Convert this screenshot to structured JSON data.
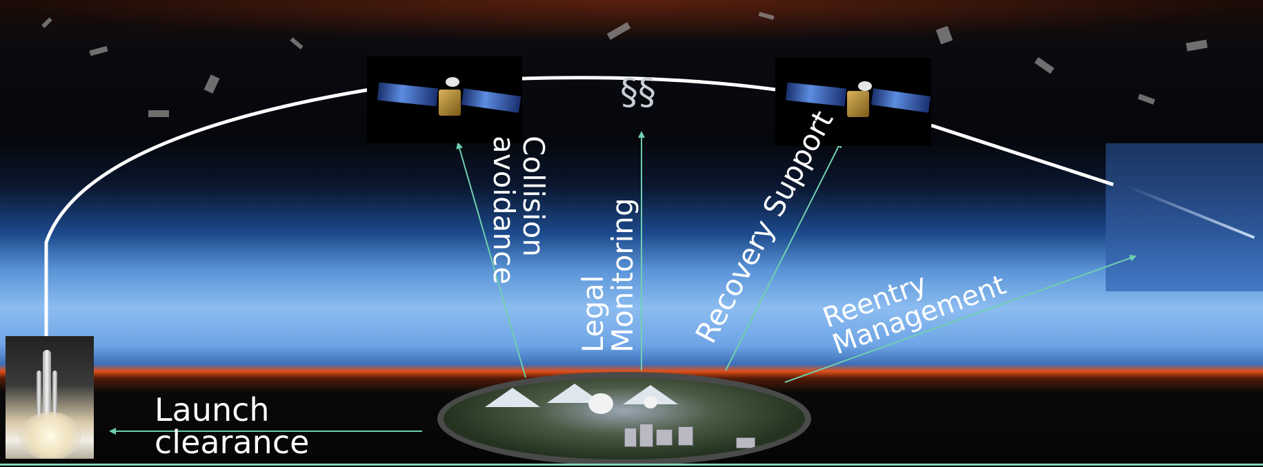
{
  "labels": {
    "launch_clearance": "Launch\nclearance",
    "collision_avoidance": "Collision\navoidance",
    "legal_monitoring": "Legal\nMonitoring",
    "legal_symbol": "§§",
    "recovery_support": "Recovery Support",
    "reentry_management": "Reentry\nManagement"
  },
  "colors": {
    "arrow": "#6fd0ae",
    "orbit": "#ffffff",
    "label_text": "#ffffff"
  },
  "icons": {
    "satellite_left": "satellite-icon",
    "satellite_right": "satellite-icon",
    "rocket": "rocket-launch-icon",
    "ground_station": "ground-station-icon",
    "reentry": "reentry-streak-icon"
  }
}
